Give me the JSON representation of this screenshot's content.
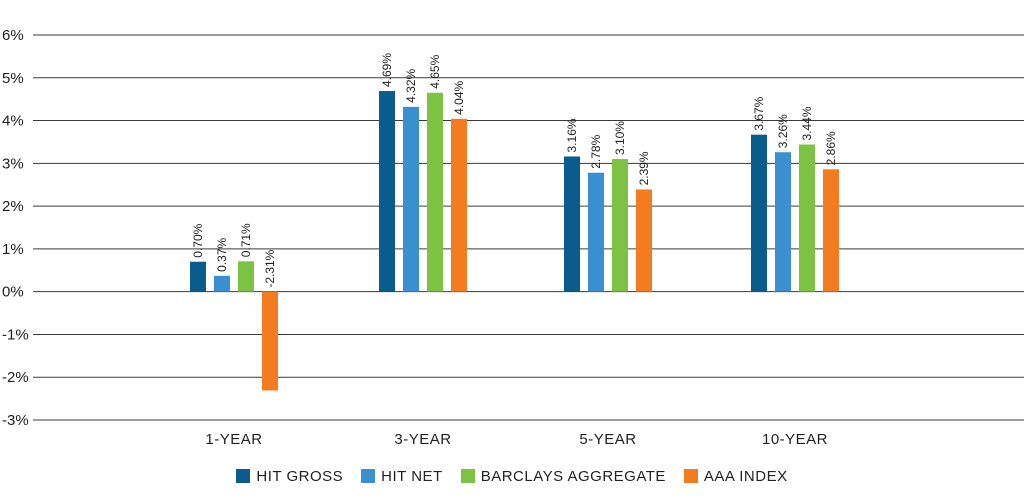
{
  "chart_data": {
    "type": "bar",
    "categories": [
      "1-YEAR",
      "3-YEAR",
      "5-YEAR",
      "10-YEAR"
    ],
    "series": [
      {
        "name": "HIT GROSS",
        "color": "#0a5c8c",
        "values": [
          0.7,
          4.69,
          3.16,
          3.67
        ],
        "labels": [
          "0.70%",
          "4.69%",
          "3.16%",
          "3.67%"
        ]
      },
      {
        "name": "HIT NET",
        "color": "#3a8fd0",
        "values": [
          0.37,
          4.32,
          2.78,
          3.26
        ],
        "labels": [
          "0.37%",
          "4.32%",
          "2.78%",
          "3.26%"
        ]
      },
      {
        "name": "BARCLAYS AGGREGATE",
        "color": "#7dc242",
        "values": [
          0.71,
          4.65,
          3.1,
          3.44
        ],
        "labels": [
          "0.71%",
          "4.65%",
          "3.10%",
          "3.44%"
        ]
      },
      {
        "name": "AAA INDEX",
        "color": "#f47c20",
        "values": [
          -2.31,
          4.04,
          2.39,
          2.86
        ],
        "labels": [
          "-2.31%",
          "4.04%",
          "2.39%",
          "2.86%"
        ]
      }
    ],
    "y_ticks": [
      6,
      5,
      4,
      3,
      2,
      1,
      0,
      -1,
      -2,
      -3
    ],
    "y_tick_labels": [
      "6%",
      "5%",
      "4%",
      "3%",
      "2%",
      "1%",
      "0%",
      "-1%",
      "-2%",
      "-3%"
    ],
    "ylim": [
      -3,
      6
    ],
    "grid": true,
    "legend_position": "bottom"
  }
}
